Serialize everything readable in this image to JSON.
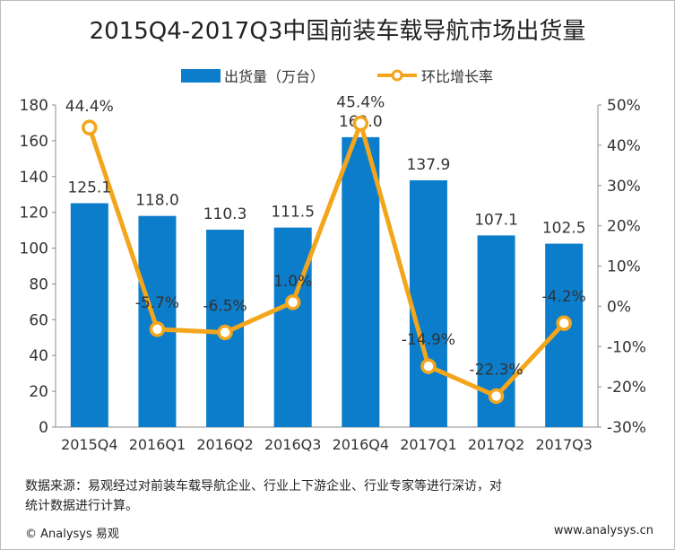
{
  "chart_data": {
    "type": "bar+line",
    "title": "2015Q4-2017Q3中国前装车载导航市场出货量",
    "categories": [
      "2015Q4",
      "2016Q1",
      "2016Q2",
      "2016Q3",
      "2016Q4",
      "2017Q1",
      "2017Q2",
      "2017Q3"
    ],
    "series": [
      {
        "name": "出货量（万台）",
        "type": "bar",
        "axis": "left",
        "color": "#0b7dcb",
        "values": [
          125.1,
          118.0,
          110.3,
          111.5,
          162.0,
          137.9,
          107.1,
          102.5
        ],
        "labels": [
          "125.1",
          "118.0",
          "110.3",
          "111.5",
          "162.0",
          "137.9",
          "107.1",
          "102.5"
        ]
      },
      {
        "name": "环比增长率",
        "type": "line",
        "axis": "right",
        "color": "#f3a51b",
        "values": [
          44.4,
          -5.7,
          -6.5,
          1.0,
          45.4,
          -14.9,
          -22.3,
          -4.2
        ],
        "labels": [
          "44.4%",
          "-5.7%",
          "-6.5%",
          "1.0%",
          "45.4%",
          "-14.9%",
          "-22.3%",
          "-4.2%"
        ]
      }
    ],
    "y_left": {
      "min": 0,
      "max": 180,
      "ticks": [
        "0",
        "20",
        "40",
        "60",
        "80",
        "100",
        "120",
        "140",
        "160",
        "180"
      ]
    },
    "y_right": {
      "min": -30,
      "max": 50,
      "ticks": [
        "-30%",
        "-20%",
        "-10%",
        "0%",
        "10%",
        "20%",
        "30%",
        "40%",
        "50%"
      ]
    },
    "grid": false,
    "legend_position": "top-center"
  },
  "legend": {
    "bar_label": "出货量（万台）",
    "line_label": "环比增长率"
  },
  "footer": {
    "source_line1": "数据来源：易观经过对前装车载导航企业、行业上下游企业、行业专家等进行深访，对",
    "source_line2": "统计数据进行计算。",
    "copyright": "© Analysys 易观",
    "website": "www.analysys.cn"
  }
}
